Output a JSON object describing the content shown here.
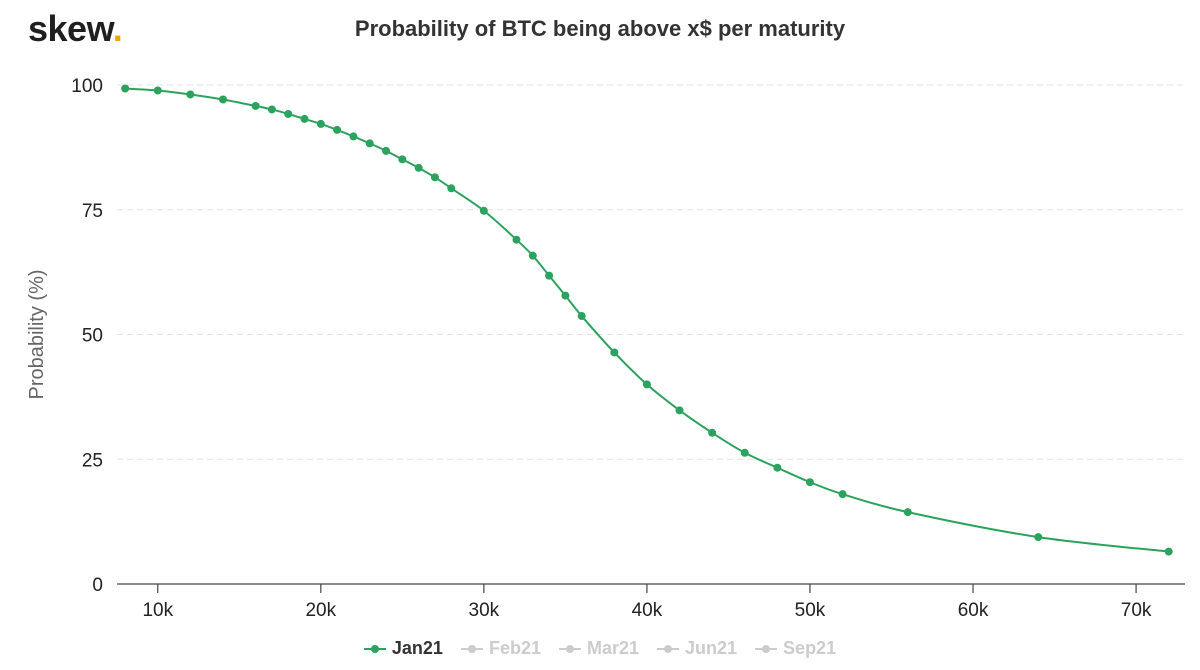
{
  "brand": {
    "name": "skew",
    "dot": ".",
    "dot_color": "#f0a500"
  },
  "chart_data": {
    "type": "line",
    "title": "Probability of BTC being above x$ per maturity",
    "xlabel": "",
    "ylabel": "Probability (%)",
    "xlim": [
      7500,
      73000
    ],
    "ylim": [
      0,
      100
    ],
    "x_ticks": [
      10000,
      20000,
      30000,
      40000,
      50000,
      60000,
      70000
    ],
    "x_tick_labels": [
      "10k",
      "20k",
      "30k",
      "40k",
      "50k",
      "60k",
      "70k"
    ],
    "y_ticks": [
      0,
      25,
      50,
      75,
      100
    ],
    "y_tick_labels": [
      "0",
      "25",
      "50",
      "75",
      "100"
    ],
    "grid": "horizontal dashed",
    "legend_position": "bottom-center",
    "series": [
      {
        "name": "Jan21",
        "color": "#2ca25f",
        "visible": true,
        "x": [
          8000,
          10000,
          12000,
          14000,
          16000,
          17000,
          18000,
          19000,
          20000,
          21000,
          22000,
          23000,
          24000,
          25000,
          26000,
          27000,
          28000,
          30000,
          32000,
          33000,
          34000,
          35000,
          36000,
          38000,
          40000,
          42000,
          44000,
          46000,
          48000,
          50000,
          52000,
          56000,
          64000,
          72000
        ],
        "y": [
          99.3,
          98.9,
          98.1,
          97.1,
          95.8,
          95.1,
          94.2,
          93.2,
          92.2,
          91.0,
          89.7,
          88.3,
          86.8,
          85.1,
          83.4,
          81.5,
          79.3,
          74.8,
          69.0,
          65.8,
          61.8,
          57.8,
          53.7,
          46.4,
          40.0,
          34.8,
          30.3,
          26.3,
          23.3,
          20.4,
          18.0,
          14.4,
          9.4,
          6.5
        ]
      },
      {
        "name": "Feb21",
        "color": "#cccccc",
        "visible": false
      },
      {
        "name": "Mar21",
        "color": "#cccccc",
        "visible": false
      },
      {
        "name": "Jun21",
        "color": "#cccccc",
        "visible": false
      },
      {
        "name": "Sep21",
        "color": "#cccccc",
        "visible": false
      }
    ]
  }
}
